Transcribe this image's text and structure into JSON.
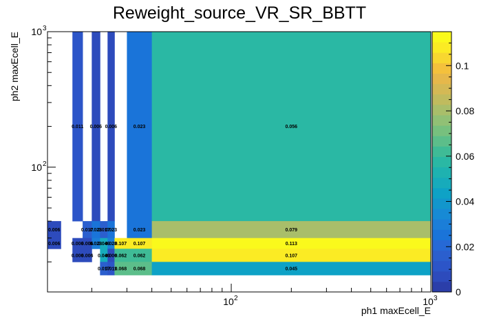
{
  "chart_data": {
    "type": "heatmap",
    "title": "Reweight_source_VR_SR_BBTT",
    "xlabel": "ph1 maxEcell_E",
    "ylabel": "ph2 maxEcell_E",
    "x_scale": "log",
    "y_scale": "log",
    "xlim": [
      12,
      1000
    ],
    "ylim": [
      12,
      1000
    ],
    "x_tick_labels": [
      {
        "base": "10",
        "exp": "2",
        "value": 100
      },
      {
        "base": "10",
        "exp": "3",
        "value": 1000
      }
    ],
    "y_tick_labels": [
      {
        "base": "10",
        "exp": "2",
        "value": 100
      },
      {
        "base": "10",
        "exp": "3",
        "value": 1000
      }
    ],
    "x_edges": [
      12,
      14,
      16,
      18,
      20,
      22,
      24,
      26,
      30,
      40,
      1000
    ],
    "y_edges": [
      12,
      16,
      20,
      25,
      30,
      40,
      1000
    ],
    "zlim": [
      0,
      0.115
    ],
    "colorbar_ticks": [
      {
        "label": "0",
        "value": 0
      },
      {
        "label": "0.02",
        "value": 0.02
      },
      {
        "label": "0.04",
        "value": 0.04
      },
      {
        "label": "0.06",
        "value": 0.06
      },
      {
        "label": "0.08",
        "value": 0.08
      },
      {
        "label": "0.1",
        "value": 0.1
      }
    ],
    "palette": [
      "#2b3ea9",
      "#2d4bbc",
      "#2c55c8",
      "#2b5fce",
      "#2669d6",
      "#1a74d9",
      "#1b7ed8",
      "#178ad5",
      "#1296cc",
      "#0ea2c6",
      "#17abbb",
      "#1eb2b0",
      "#2ab8a4",
      "#3fbb96",
      "#5cbe8a",
      "#77c07e",
      "#91c075",
      "#a9be6a",
      "#c0bb5e",
      "#d4b955",
      "#e6b84b",
      "#f4c13c",
      "#f8d730",
      "#fbeb24",
      "#faf91c"
    ],
    "cells": [
      {
        "xi": 2,
        "yi": 5,
        "value": 0.011,
        "label": "0.011"
      },
      {
        "xi": 4,
        "yi": 5,
        "value": 0.006,
        "label": "0.006"
      },
      {
        "xi": 6,
        "yi": 5,
        "value": 0.006,
        "label": "0.006"
      },
      {
        "xi": 8,
        "yi": 5,
        "value": 0.023,
        "label": "0.023"
      },
      {
        "xi": 9,
        "yi": 5,
        "value": 0.056,
        "label": "0.056"
      },
      {
        "xi": 0,
        "yi": 4,
        "value": 0.006,
        "label": "0.006"
      },
      {
        "xi": 3,
        "yi": 4,
        "value": 0.017,
        "label": "0.017"
      },
      {
        "xi": 4,
        "yi": 4,
        "value": 0.023,
        "label": "0.023"
      },
      {
        "xi": 5,
        "yi": 4,
        "value": 0.017,
        "label": "0.017"
      },
      {
        "xi": 6,
        "yi": 4,
        "value": 0.023,
        "label": "0.023"
      },
      {
        "xi": 8,
        "yi": 4,
        "value": 0.023,
        "label": "0.023"
      },
      {
        "xi": 9,
        "yi": 4,
        "value": 0.079,
        "label": "0.079"
      },
      {
        "xi": 0,
        "yi": 3,
        "value": 0.006,
        "label": "0.006"
      },
      {
        "xi": 2,
        "yi": 3,
        "value": 0.006,
        "label": "0.006"
      },
      {
        "xi": 3,
        "yi": 3,
        "value": 0.006,
        "label": "0.006"
      },
      {
        "xi": 4,
        "yi": 3,
        "value": 0.028,
        "label": "0.028"
      },
      {
        "xi": 5,
        "yi": 3,
        "value": 0.046,
        "label": "0.046"
      },
      {
        "xi": 6,
        "yi": 3,
        "value": 0.028,
        "label": "0.028"
      },
      {
        "xi": 7,
        "yi": 3,
        "value": 0.107,
        "label": "0.107"
      },
      {
        "xi": 8,
        "yi": 3,
        "value": 0.107,
        "label": "0.107"
      },
      {
        "xi": 9,
        "yi": 3,
        "value": 0.113,
        "label": "0.113"
      },
      {
        "xi": 2,
        "yi": 2,
        "value": 0.006,
        "label": "0.006"
      },
      {
        "xi": 3,
        "yi": 2,
        "value": 0.006,
        "label": "0.006"
      },
      {
        "xi": 5,
        "yi": 2,
        "value": 0.046,
        "label": "0.046"
      },
      {
        "xi": 6,
        "yi": 2,
        "value": 0.006,
        "label": "0.006"
      },
      {
        "xi": 7,
        "yi": 2,
        "value": 0.062,
        "label": "0.062"
      },
      {
        "xi": 8,
        "yi": 2,
        "value": 0.062,
        "label": "0.062"
      },
      {
        "xi": 9,
        "yi": 2,
        "value": 0.107,
        "label": "0.107"
      },
      {
        "xi": 5,
        "yi": 1,
        "value": 0.017,
        "label": "0.017"
      },
      {
        "xi": 6,
        "yi": 1,
        "value": 0.011,
        "label": "0.011"
      },
      {
        "xi": 7,
        "yi": 1,
        "value": 0.068,
        "label": "0.068"
      },
      {
        "xi": 8,
        "yi": 1,
        "value": 0.068,
        "label": "0.068"
      },
      {
        "xi": 9,
        "yi": 1,
        "value": 0.045,
        "label": "0.045"
      }
    ]
  }
}
